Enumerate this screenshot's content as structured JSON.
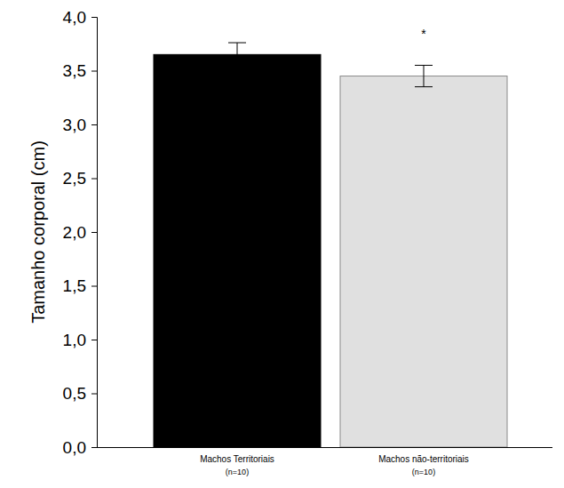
{
  "chart_data": {
    "type": "bar",
    "y_label": "Tamanho corporal (cm)",
    "categories": [
      "Machos Territoriais\n(n=10)",
      "Machos não-territoriais\n(n=10)"
    ],
    "values": [
      3.65,
      3.45
    ],
    "errors": [
      0.11,
      0.1
    ],
    "colors": [
      "#000000",
      "#e0e0e0"
    ],
    "ylim": [
      0,
      4
    ],
    "yticks": [
      {
        "value": 0,
        "label": "0,0"
      },
      {
        "value": 0.5,
        "label": "0,5"
      },
      {
        "value": 1,
        "label": "1,0"
      },
      {
        "value": 1.5,
        "label": "1,5"
      },
      {
        "value": 2,
        "label": "2,0"
      },
      {
        "value": 2.5,
        "label": "2,5"
      },
      {
        "value": 3,
        "label": "3,0"
      },
      {
        "value": 3.5,
        "label": "3,5"
      },
      {
        "value": 4,
        "label": "4,0"
      }
    ],
    "grid": false,
    "annotations": [
      {
        "text": "*",
        "x": 1,
        "y": 3.83
      }
    ]
  }
}
